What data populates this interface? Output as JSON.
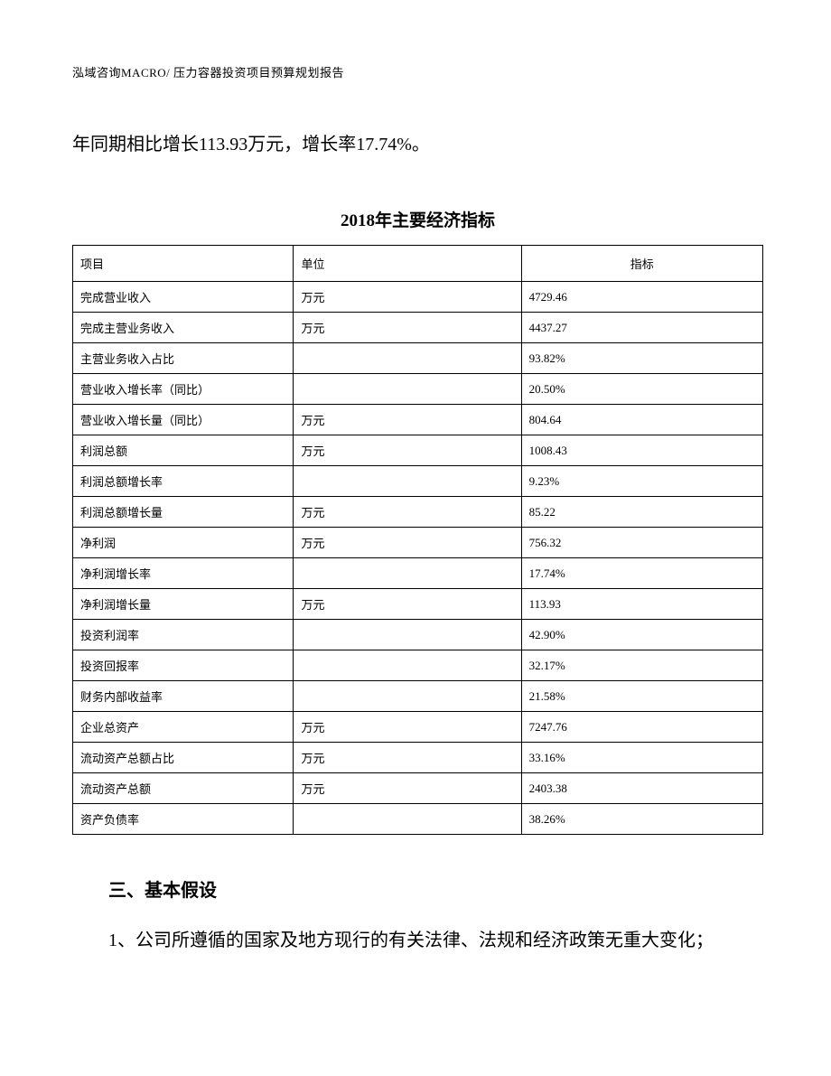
{
  "header": {
    "text": "泓域咨询MACRO/    压力容器投资项目预算规划报告"
  },
  "intro_paragraph": "年同期相比增长113.93万元，增长率17.74%。",
  "table": {
    "title": "2018年主要经济指标",
    "columns": {
      "item": "项目",
      "unit": "单位",
      "value": "指标"
    },
    "rows": [
      {
        "item": "完成营业收入",
        "unit": "万元",
        "value": "4729.46"
      },
      {
        "item": "完成主营业务收入",
        "unit": "万元",
        "value": "4437.27"
      },
      {
        "item": "主营业务收入占比",
        "unit": "",
        "value": "93.82%"
      },
      {
        "item": "营业收入增长率（同比）",
        "unit": "",
        "value": "20.50%"
      },
      {
        "item": "营业收入增长量（同比）",
        "unit": "万元",
        "value": "804.64"
      },
      {
        "item": "利润总额",
        "unit": "万元",
        "value": "1008.43"
      },
      {
        "item": "利润总额增长率",
        "unit": "",
        "value": "9.23%"
      },
      {
        "item": "利润总额增长量",
        "unit": "万元",
        "value": "85.22"
      },
      {
        "item": "净利润",
        "unit": "万元",
        "value": "756.32"
      },
      {
        "item": "净利润增长率",
        "unit": "",
        "value": "17.74%"
      },
      {
        "item": "净利润增长量",
        "unit": "万元",
        "value": "113.93"
      },
      {
        "item": "投资利润率",
        "unit": "",
        "value": "42.90%"
      },
      {
        "item": "投资回报率",
        "unit": "",
        "value": "32.17%"
      },
      {
        "item": "财务内部收益率",
        "unit": "",
        "value": "21.58%"
      },
      {
        "item": "企业总资产",
        "unit": "万元",
        "value": "7247.76"
      },
      {
        "item": "流动资产总额占比",
        "unit": "万元",
        "value": "33.16%"
      },
      {
        "item": "流动资产总额",
        "unit": "万元",
        "value": "2403.38"
      },
      {
        "item": "资产负债率",
        "unit": "",
        "value": "38.26%"
      }
    ]
  },
  "section": {
    "heading": "三、基本假设",
    "body": "1、公司所遵循的国家及地方现行的有关法律、法规和经济政策无重大变化；"
  }
}
